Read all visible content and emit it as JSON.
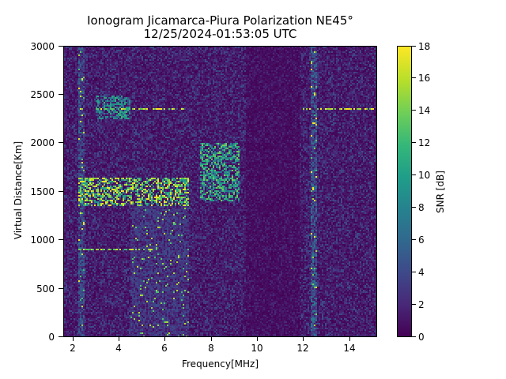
{
  "title": {
    "line1": "Ionogram Jicamarca-Piura Polarization NE45°",
    "line2": "12/25/2024-01:53:05 UTC"
  },
  "axes": {
    "xlabel": "Frequency[MHz]",
    "ylabel": "Virtual Distance[Km]",
    "xticks": [
      "2",
      "4",
      "6",
      "8",
      "10",
      "12",
      "14"
    ],
    "yticks": [
      "0",
      "500",
      "1000",
      "1500",
      "2000",
      "2500",
      "3000"
    ]
  },
  "colorbar": {
    "label": "SNR [dB]",
    "ticks": [
      "0",
      "2",
      "4",
      "6",
      "8",
      "10",
      "12",
      "14",
      "16",
      "18"
    ],
    "colormap": "viridis",
    "colors": [
      "#440154",
      "#482878",
      "#3e4989",
      "#31688e",
      "#26828e",
      "#1f9e89",
      "#35b779",
      "#6ece58",
      "#b5de2b",
      "#fde725"
    ]
  },
  "chart_data": {
    "type": "heatmap",
    "title": "Ionogram Jicamarca-Piura Polarization NE45° 12/25/2024-01:53:05 UTC",
    "xlabel": "Frequency[MHz]",
    "ylabel": "Virtual Distance[Km]",
    "colorbar_label": "SNR [dB]",
    "xlim": [
      1.6,
      15.2
    ],
    "ylim": [
      0,
      3000
    ],
    "clim": [
      0,
      18
    ],
    "xticks": [
      2,
      4,
      6,
      8,
      10,
      12,
      14
    ],
    "yticks": [
      0,
      500,
      1000,
      1500,
      2000,
      2500,
      3000
    ],
    "cticks": [
      0,
      2,
      4,
      6,
      8,
      10,
      12,
      14,
      16,
      18
    ],
    "colormap": "viridis",
    "features": [
      {
        "name": "F-layer echo trace",
        "freq_range_mhz": [
          2.2,
          7.0
        ],
        "distance_km": [
          1350,
          1650
        ],
        "snr_db": 16,
        "note": "strong yellow band, rising slightly with frequency"
      },
      {
        "name": "high-frequency F trace",
        "freq_range_mhz": [
          7.5,
          9.2
        ],
        "distance_km": [
          1400,
          2000
        ],
        "snr_db": 12,
        "note": "green/yellow speckled patch"
      },
      {
        "name": "multi-hop echo",
        "freq_range_mhz": [
          3.0,
          4.5
        ],
        "distance_km": [
          2250,
          2500
        ],
        "snr_db": 10
      },
      {
        "name": "horizontal interference line",
        "freq_range_mhz": [
          2.2,
          6.8
        ],
        "distance_km": [
          2350,
          2360
        ],
        "snr_db": 18
      },
      {
        "name": "horizontal interference line",
        "freq_range_mhz": [
          11.9,
          15.2
        ],
        "distance_km": [
          2350,
          2360
        ],
        "snr_db": 18
      },
      {
        "name": "horizontal interference line",
        "freq_range_mhz": [
          2.2,
          5.5
        ],
        "distance_km": [
          895,
          905
        ],
        "snr_db": 16
      },
      {
        "name": "vertical interference band",
        "freq_range_mhz": [
          2.2,
          2.5
        ],
        "distance_km": [
          0,
          3000
        ],
        "snr_db": 6
      },
      {
        "name": "vertical interference band",
        "freq_range_mhz": [
          12.3,
          12.6
        ],
        "distance_km": [
          0,
          3000
        ],
        "snr_db": 7
      },
      {
        "name": "noise banding",
        "freq_range_mhz": [
          4.5,
          7.0
        ],
        "distance_km": [
          0,
          1350
        ],
        "snr_db": 4
      }
    ],
    "background_snr_db": 1
  }
}
